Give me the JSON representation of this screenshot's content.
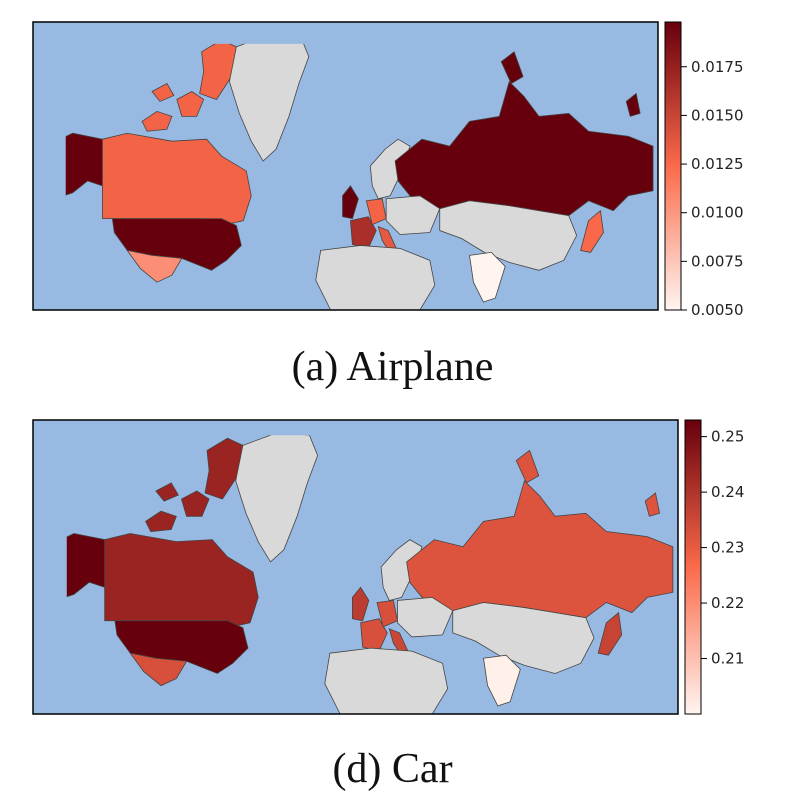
{
  "colors": {
    "ocean": "#98b9e2",
    "no_data": "#d9d9d9",
    "border": "#444444",
    "cmap_low": "#fff5f0",
    "cmap_mid": "#fb6a4a",
    "cmap_high": "#67000d"
  },
  "panels": [
    {
      "id": "a",
      "caption": "(a) Airplane",
      "colorbar": {
        "min": 0.005,
        "max": 0.0198,
        "ticks": [
          "0.0050",
          "0.0075",
          "0.0100",
          "0.0125",
          "0.0150",
          "0.0175"
        ],
        "tick_values": [
          0.005,
          0.0075,
          0.01,
          0.0125,
          0.015,
          0.0175
        ]
      },
      "regions": {
        "canada": 0.0128,
        "greenland": null,
        "alaska": 0.0198,
        "usa": 0.0198,
        "mexico": 0.0105,
        "russia": 0.0198,
        "uk": 0.0198,
        "france": 0.0165,
        "germany": 0.0128,
        "italy": 0.0135,
        "india": 0.005,
        "japan": 0.0125,
        "china": null,
        "africa": null,
        "europe_other": null,
        "scandinavia": null
      }
    },
    {
      "id": "d",
      "caption": "(d) Car",
      "colorbar": {
        "min": 0.2,
        "max": 0.253,
        "ticks": [
          "0.21",
          "0.22",
          "0.23",
          "0.24",
          "0.25"
        ],
        "tick_values": [
          0.21,
          0.22,
          0.23,
          0.24,
          0.25
        ]
      },
      "regions": {
        "canada": 0.244,
        "greenland": null,
        "alaska": 0.253,
        "usa": 0.253,
        "mexico": 0.233,
        "russia": 0.232,
        "uk": 0.238,
        "france": 0.233,
        "germany": 0.233,
        "italy": 0.235,
        "india": 0.201,
        "japan": 0.236,
        "china": null,
        "africa": null,
        "europe_other": null,
        "scandinavia": null
      }
    }
  ]
}
